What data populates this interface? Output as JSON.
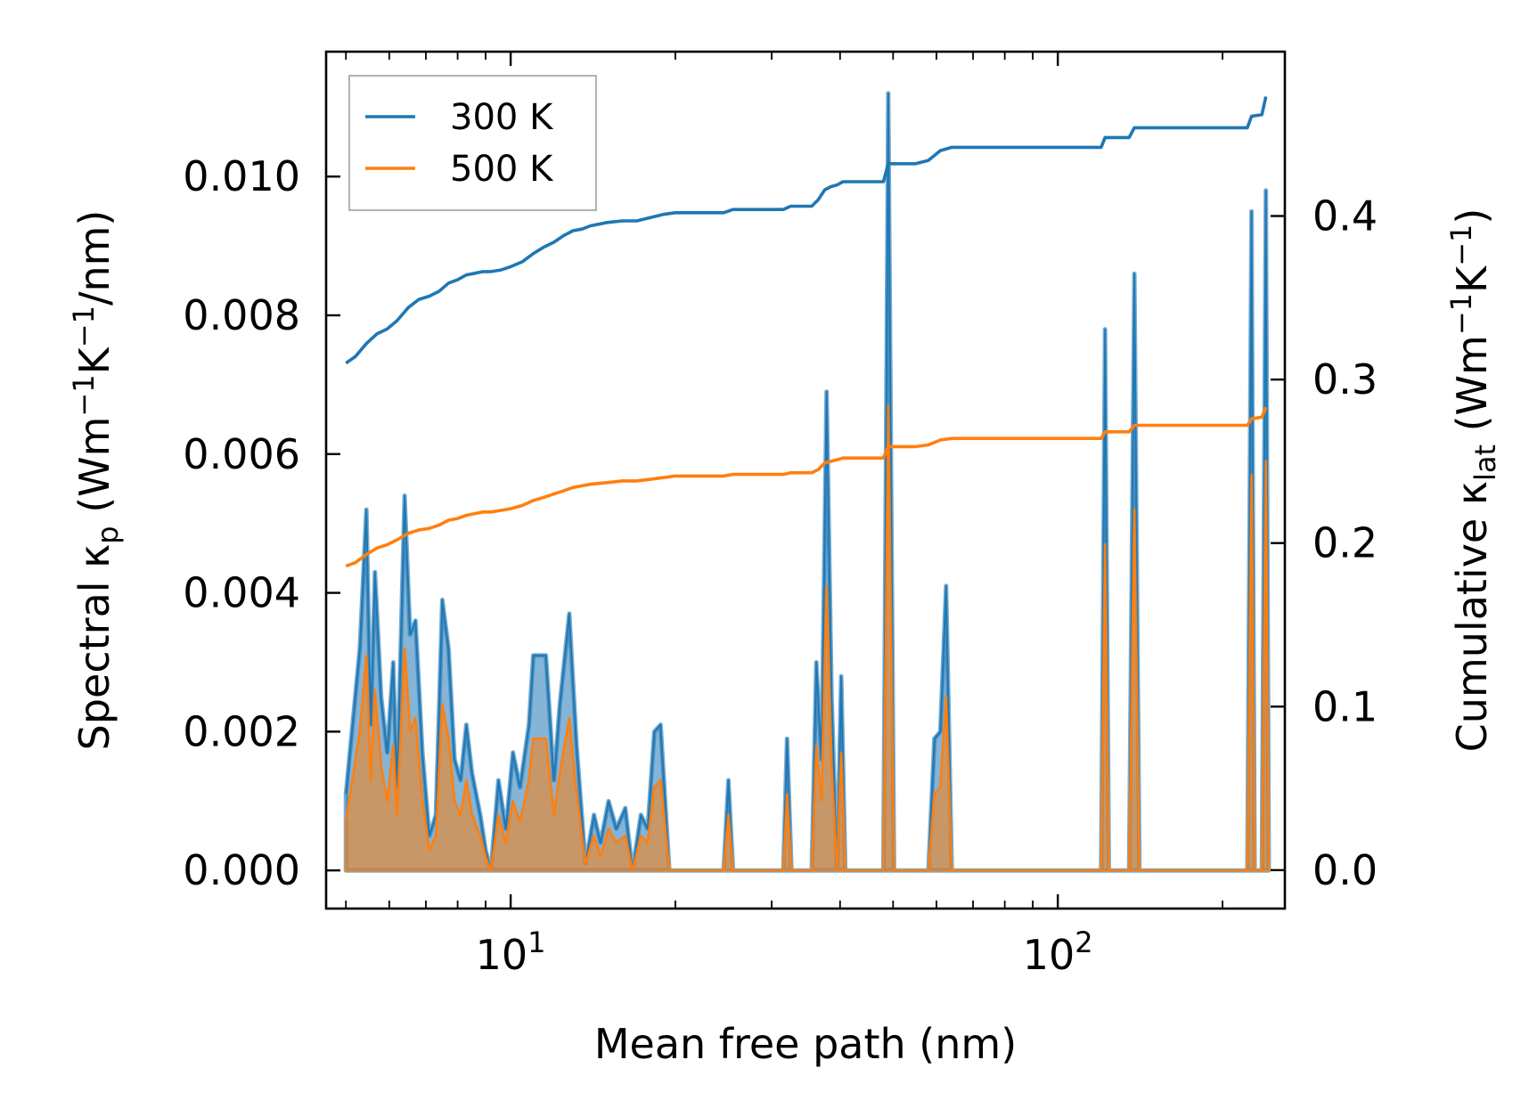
{
  "chart_data": {
    "type": "line",
    "xscale": "log",
    "xlabel": "Mean free path (nm)",
    "ylabel_left": {
      "main": "Spectral κ",
      "sub": "p",
      "units": " (Wm",
      "sup1": "−1",
      "k": "K",
      "sup2": "−1",
      "tail": "/nm)"
    },
    "ylabel_right": {
      "main": "Cumulative κ",
      "sub": "lat",
      "units": " (Wm",
      "sup1": "−1",
      "k": "K",
      "sup2": "−1",
      "tail": ")"
    },
    "xlim": [
      4.6,
      260
    ],
    "ylim_left": [
      -0.00055,
      0.0118
    ],
    "ylim_right": [
      -0.0235,
      0.5005
    ],
    "x_ticks": [
      {
        "value": 10,
        "base": "10",
        "exp": "1"
      },
      {
        "value": 100,
        "base": "10",
        "exp": "2"
      }
    ],
    "left_ticks": [
      {
        "value": 0.0,
        "label": "0.000"
      },
      {
        "value": 0.002,
        "label": "0.002"
      },
      {
        "value": 0.004,
        "label": "0.004"
      },
      {
        "value": 0.006,
        "label": "0.006"
      },
      {
        "value": 0.008,
        "label": "0.008"
      },
      {
        "value": 0.01,
        "label": "0.010"
      }
    ],
    "right_ticks": [
      {
        "value": 0.0,
        "label": "0.0"
      },
      {
        "value": 0.1,
        "label": "0.1"
      },
      {
        "value": 0.2,
        "label": "0.2"
      },
      {
        "value": 0.3,
        "label": "0.3"
      },
      {
        "value": 0.4,
        "label": "0.4"
      }
    ],
    "legend": {
      "position": "upper-left",
      "entries": [
        {
          "label": "300 K",
          "color": "#1f77b4"
        },
        {
          "label": "500 K",
          "color": "#ff7f0e"
        }
      ]
    },
    "series": [
      {
        "name": "300 K",
        "color": "#1f77b4",
        "spectral": [
          [
            5,
            0.0011
          ],
          [
            5.3,
            0.0032
          ],
          [
            5.45,
            0.0052
          ],
          [
            5.55,
            0.0021
          ],
          [
            5.65,
            0.0043
          ],
          [
            5.8,
            0.0025
          ],
          [
            5.95,
            0.0017
          ],
          [
            6.1,
            0.003
          ],
          [
            6.2,
            0.0012
          ],
          [
            6.4,
            0.0054
          ],
          [
            6.55,
            0.0034
          ],
          [
            6.7,
            0.0036
          ],
          [
            6.9,
            0.0017
          ],
          [
            7.1,
            0.0005
          ],
          [
            7.3,
            0.0008
          ],
          [
            7.5,
            0.0039
          ],
          [
            7.7,
            0.0032
          ],
          [
            7.9,
            0.0016
          ],
          [
            8.1,
            0.0013
          ],
          [
            8.3,
            0.0021
          ],
          [
            8.5,
            0.0014
          ],
          [
            8.8,
            0.0008
          ],
          [
            9.0,
            0.0003
          ],
          [
            9.2,
            0.0,
            "x"
          ],
          [
            9.5,
            0.0013
          ],
          [
            9.8,
            0.0006
          ],
          [
            10.1,
            0.0017
          ],
          [
            10.4,
            0.0012
          ],
          [
            10.8,
            0.0021
          ],
          [
            11.0,
            0.0031
          ],
          [
            11.6,
            0.0031
          ],
          [
            12.0,
            0.0013
          ],
          [
            12.3,
            0.0024
          ],
          [
            12.8,
            0.0037
          ],
          [
            13.2,
            0.0018
          ],
          [
            13.7,
            0.0001
          ],
          [
            14.2,
            0.0008
          ],
          [
            14.6,
            0.0004
          ],
          [
            15.1,
            0.001
          ],
          [
            15.6,
            0.0006
          ],
          [
            16.2,
            0.0009
          ],
          [
            16.7,
            0.0
          ],
          [
            17.3,
            0.0008
          ],
          [
            17.8,
            0.0006
          ],
          [
            18.3,
            0.002
          ],
          [
            18.8,
            0.0021
          ],
          [
            19.5,
            0.0
          ],
          [
            24.5,
            0.0
          ],
          [
            25.0,
            0.0013
          ],
          [
            25.5,
            0.0
          ],
          [
            31.5,
            0.0
          ],
          [
            32.0,
            0.0019
          ],
          [
            32.6,
            0.0
          ],
          [
            35.5,
            0.0
          ],
          [
            36.2,
            0.003
          ],
          [
            37.0,
            0.0016
          ],
          [
            37.8,
            0.0069
          ],
          [
            38.6,
            0.0025
          ],
          [
            39.5,
            0.0
          ],
          [
            40.2,
            0.0028
          ],
          [
            40.9,
            0.0
          ],
          [
            48.0,
            0.0
          ],
          [
            49.0,
            0.0112
          ],
          [
            50.2,
            0.0
          ],
          [
            58.0,
            0.0
          ],
          [
            59.5,
            0.0019
          ],
          [
            61.0,
            0.002
          ],
          [
            62.5,
            0.0041
          ],
          [
            64.0,
            0.0
          ],
          [
            120,
            0.0
          ],
          [
            122,
            0.0078
          ],
          [
            124,
            0.0
          ],
          [
            135,
            0.0
          ],
          [
            138,
            0.0086
          ],
          [
            141,
            0.0
          ],
          [
            222,
            0.0
          ],
          [
            226,
            0.0095
          ],
          [
            229,
            0.0
          ],
          [
            236,
            0.0
          ],
          [
            240,
            0.0098
          ],
          [
            243,
            0.0
          ]
        ],
        "cumulative": [
          [
            5.0,
            0.31
          ],
          [
            5.2,
            0.314
          ],
          [
            5.45,
            0.322
          ],
          [
            5.7,
            0.328
          ],
          [
            5.95,
            0.331
          ],
          [
            6.2,
            0.336
          ],
          [
            6.5,
            0.344
          ],
          [
            6.8,
            0.349
          ],
          [
            7.1,
            0.351
          ],
          [
            7.4,
            0.354
          ],
          [
            7.7,
            0.359
          ],
          [
            8.0,
            0.361
          ],
          [
            8.3,
            0.364
          ],
          [
            8.6,
            0.365
          ],
          [
            8.9,
            0.366
          ],
          [
            9.2,
            0.366
          ],
          [
            9.6,
            0.367
          ],
          [
            10.0,
            0.369
          ],
          [
            10.5,
            0.372
          ],
          [
            11.0,
            0.377
          ],
          [
            11.5,
            0.381
          ],
          [
            12.0,
            0.384
          ],
          [
            12.5,
            0.388
          ],
          [
            13.0,
            0.391
          ],
          [
            13.5,
            0.392
          ],
          [
            14.0,
            0.394
          ],
          [
            15.0,
            0.396
          ],
          [
            16.0,
            0.397
          ],
          [
            17.0,
            0.397
          ],
          [
            18.0,
            0.399
          ],
          [
            19.0,
            0.401
          ],
          [
            20.0,
            0.402
          ],
          [
            24.5,
            0.402
          ],
          [
            25.5,
            0.404
          ],
          [
            31.5,
            0.404
          ],
          [
            32.5,
            0.406
          ],
          [
            35.5,
            0.406
          ],
          [
            36.5,
            0.41
          ],
          [
            37.5,
            0.416
          ],
          [
            38.5,
            0.418
          ],
          [
            39.5,
            0.419
          ],
          [
            40.5,
            0.421
          ],
          [
            48.0,
            0.421
          ],
          [
            49.0,
            0.432
          ],
          [
            55.0,
            0.432
          ],
          [
            58.0,
            0.434
          ],
          [
            61.0,
            0.44
          ],
          [
            64.0,
            0.442
          ],
          [
            120,
            0.442
          ],
          [
            122,
            0.448
          ],
          [
            135,
            0.448
          ],
          [
            138,
            0.454
          ],
          [
            222,
            0.454
          ],
          [
            226,
            0.461
          ],
          [
            236,
            0.462
          ],
          [
            240,
            0.473
          ]
        ]
      },
      {
        "name": "500 K",
        "color": "#ff7f0e",
        "spectral": [
          [
            5,
            0.0007
          ],
          [
            5.3,
            0.002
          ],
          [
            5.45,
            0.0031
          ],
          [
            5.55,
            0.0013
          ],
          [
            5.65,
            0.0026
          ],
          [
            5.8,
            0.0015
          ],
          [
            5.95,
            0.001
          ],
          [
            6.1,
            0.0018
          ],
          [
            6.2,
            0.0008
          ],
          [
            6.4,
            0.0032
          ],
          [
            6.55,
            0.002
          ],
          [
            6.7,
            0.0022
          ],
          [
            6.9,
            0.001
          ],
          [
            7.1,
            0.0003
          ],
          [
            7.3,
            0.0005
          ],
          [
            7.5,
            0.0024
          ],
          [
            7.7,
            0.0019
          ],
          [
            7.9,
            0.001
          ],
          [
            8.1,
            0.0008
          ],
          [
            8.3,
            0.0013
          ],
          [
            8.5,
            0.0008
          ],
          [
            8.8,
            0.0005
          ],
          [
            9.0,
            0.0002
          ],
          [
            9.2,
            0.0
          ],
          [
            9.5,
            0.0008
          ],
          [
            9.8,
            0.0004
          ],
          [
            10.1,
            0.001
          ],
          [
            10.4,
            0.0007
          ],
          [
            10.8,
            0.0013
          ],
          [
            11.0,
            0.0019
          ],
          [
            11.6,
            0.0019
          ],
          [
            12.0,
            0.0008
          ],
          [
            12.3,
            0.0014
          ],
          [
            12.8,
            0.0022
          ],
          [
            13.2,
            0.0011
          ],
          [
            13.7,
            0.0001
          ],
          [
            14.2,
            0.0005
          ],
          [
            14.6,
            0.0002
          ],
          [
            15.1,
            0.0006
          ],
          [
            15.6,
            0.0004
          ],
          [
            16.2,
            0.0005
          ],
          [
            16.7,
            0.0
          ],
          [
            17.3,
            0.0005
          ],
          [
            17.8,
            0.0004
          ],
          [
            18.3,
            0.0012
          ],
          [
            18.8,
            0.0013
          ],
          [
            19.5,
            0.0
          ],
          [
            24.5,
            0.0
          ],
          [
            25.0,
            0.0008
          ],
          [
            25.5,
            0.0
          ],
          [
            31.5,
            0.0
          ],
          [
            32.0,
            0.0011
          ],
          [
            32.6,
            0.0
          ],
          [
            35.5,
            0.0
          ],
          [
            36.2,
            0.0018
          ],
          [
            37.0,
            0.001
          ],
          [
            37.8,
            0.0041
          ],
          [
            38.6,
            0.0015
          ],
          [
            39.5,
            0.0
          ],
          [
            40.2,
            0.0017
          ],
          [
            40.9,
            0.0
          ],
          [
            48.0,
            0.0
          ],
          [
            49.0,
            0.0067
          ],
          [
            50.2,
            0.0
          ],
          [
            58.0,
            0.0
          ],
          [
            59.5,
            0.0011
          ],
          [
            61.0,
            0.0012
          ],
          [
            62.5,
            0.0025
          ],
          [
            64.0,
            0.0
          ],
          [
            120,
            0.0
          ],
          [
            122,
            0.0047
          ],
          [
            124,
            0.0
          ],
          [
            135,
            0.0
          ],
          [
            138,
            0.0052
          ],
          [
            141,
            0.0
          ],
          [
            222,
            0.0
          ],
          [
            226,
            0.0057
          ],
          [
            229,
            0.0
          ],
          [
            236,
            0.0
          ],
          [
            240,
            0.0059
          ],
          [
            243,
            0.0
          ]
        ],
        "cumulative": [
          [
            5.0,
            0.186
          ],
          [
            5.2,
            0.188
          ],
          [
            5.45,
            0.193
          ],
          [
            5.7,
            0.197
          ],
          [
            5.95,
            0.199
          ],
          [
            6.2,
            0.202
          ],
          [
            6.5,
            0.206
          ],
          [
            6.8,
            0.208
          ],
          [
            7.1,
            0.209
          ],
          [
            7.4,
            0.211
          ],
          [
            7.7,
            0.214
          ],
          [
            8.0,
            0.215
          ],
          [
            8.3,
            0.217
          ],
          [
            8.6,
            0.218
          ],
          [
            8.9,
            0.219
          ],
          [
            9.2,
            0.219
          ],
          [
            9.6,
            0.22
          ],
          [
            10.0,
            0.221
          ],
          [
            10.5,
            0.223
          ],
          [
            11.0,
            0.226
          ],
          [
            11.5,
            0.228
          ],
          [
            12.0,
            0.23
          ],
          [
            12.5,
            0.232
          ],
          [
            13.0,
            0.234
          ],
          [
            13.5,
            0.235
          ],
          [
            14.0,
            0.236
          ],
          [
            15.0,
            0.237
          ],
          [
            16.0,
            0.238
          ],
          [
            17.0,
            0.238
          ],
          [
            18.0,
            0.239
          ],
          [
            19.0,
            0.24
          ],
          [
            20.0,
            0.241
          ],
          [
            24.5,
            0.241
          ],
          [
            25.5,
            0.242
          ],
          [
            31.5,
            0.242
          ],
          [
            32.5,
            0.243
          ],
          [
            35.5,
            0.243
          ],
          [
            36.5,
            0.245
          ],
          [
            37.5,
            0.249
          ],
          [
            38.5,
            0.25
          ],
          [
            39.5,
            0.251
          ],
          [
            40.5,
            0.252
          ],
          [
            48.0,
            0.252
          ],
          [
            49.0,
            0.259
          ],
          [
            55.0,
            0.259
          ],
          [
            58.0,
            0.26
          ],
          [
            61.0,
            0.263
          ],
          [
            64.0,
            0.264
          ],
          [
            120,
            0.264
          ],
          [
            122,
            0.268
          ],
          [
            135,
            0.268
          ],
          [
            138,
            0.272
          ],
          [
            222,
            0.272
          ],
          [
            226,
            0.276
          ],
          [
            236,
            0.277
          ],
          [
            240,
            0.283
          ]
        ]
      }
    ]
  }
}
